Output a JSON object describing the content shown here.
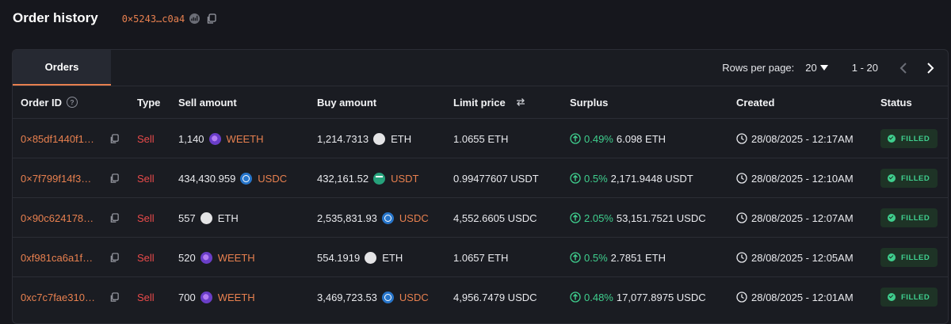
{
  "header": {
    "title": "Order history",
    "address": "0×5243…c0a4"
  },
  "tabs": [
    {
      "label": "Orders"
    }
  ],
  "pagination": {
    "rows_per_page_label": "Rows per page:",
    "rows_per_page_value": "20",
    "range": "1 - 20"
  },
  "columns": {
    "order_id": "Order ID",
    "type": "Type",
    "sell_amount": "Sell amount",
    "buy_amount": "Buy amount",
    "limit_price": "Limit price",
    "surplus": "Surplus",
    "created": "Created",
    "status": "Status"
  },
  "rows": [
    {
      "order_id": "0×85df1440f1…",
      "type": "Sell",
      "sell_amount": "1,140",
      "sell_token": "WEETH",
      "sell_icon": "weeth",
      "buy_amount": "1,214.7313",
      "buy_token": "ETH",
      "buy_icon": "eth",
      "limit_price": "1.0655 ETH",
      "surplus_pct": "0.49%",
      "surplus_amount": "6.098 ETH",
      "created": "28/08/2025 - 12:17AM",
      "status": "FILLED"
    },
    {
      "order_id": "0×7f799f14f3…",
      "type": "Sell",
      "sell_amount": "434,430.959",
      "sell_token": "USDC",
      "sell_icon": "usdc",
      "buy_amount": "432,161.52",
      "buy_token": "USDT",
      "buy_icon": "usdt",
      "limit_price": "0.99477607 USDT",
      "surplus_pct": "0.5%",
      "surplus_amount": "2,171.9448 USDT",
      "created": "28/08/2025 - 12:10AM",
      "status": "FILLED"
    },
    {
      "order_id": "0×90c624178…",
      "type": "Sell",
      "sell_amount": "557",
      "sell_token": "ETH",
      "sell_icon": "eth",
      "buy_amount": "2,535,831.93",
      "buy_token": "USDC",
      "buy_icon": "usdc",
      "limit_price": "4,552.6605 USDC",
      "surplus_pct": "2.05%",
      "surplus_amount": "53,151.7521 USDC",
      "created": "28/08/2025 - 12:07AM",
      "status": "FILLED"
    },
    {
      "order_id": "0xf981ca6a1f…",
      "type": "Sell",
      "sell_amount": "520",
      "sell_token": "WEETH",
      "sell_icon": "weeth",
      "buy_amount": "554.1919",
      "buy_token": "ETH",
      "buy_icon": "eth",
      "limit_price": "1.0657 ETH",
      "surplus_pct": "0.5%",
      "surplus_amount": "2.7851 ETH",
      "created": "28/08/2025 - 12:05AM",
      "status": "FILLED"
    },
    {
      "order_id": "0xc7c7fae310…",
      "type": "Sell",
      "sell_amount": "700",
      "sell_token": "WEETH",
      "sell_icon": "weeth",
      "buy_amount": "3,469,723.53",
      "buy_token": "USDC",
      "buy_icon": "usdc",
      "limit_price": "4,956.7479 USDC",
      "surplus_pct": "0.48%",
      "surplus_amount": "17,077.8975 USDC",
      "created": "28/08/2025 - 12:01AM",
      "status": "FILLED"
    }
  ],
  "colors": {
    "accent": "#e8804f",
    "sell": "#e84a4a",
    "positive": "#3fcf8e",
    "background": "#16171d",
    "card": "#1a1c22"
  }
}
